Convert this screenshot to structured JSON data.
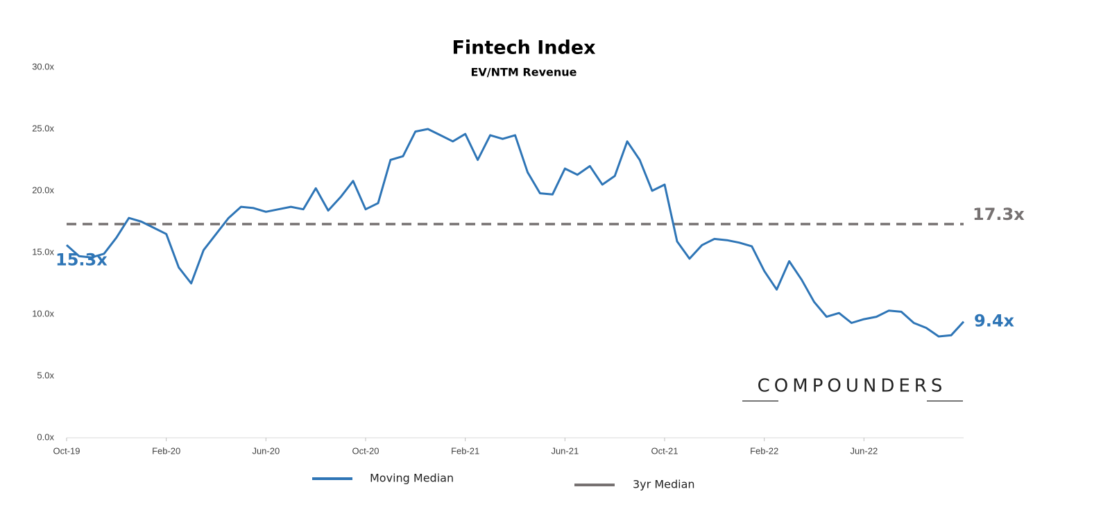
{
  "chart_data": {
    "type": "line",
    "title": "Fintech Index",
    "subtitle": "EV/NTM Revenue",
    "categories": [
      "Oct-19",
      null,
      null,
      null,
      null,
      null,
      null,
      null,
      "Feb-20",
      null,
      null,
      null,
      null,
      null,
      null,
      null,
      "Jun-20",
      null,
      null,
      null,
      null,
      null,
      null,
      null,
      "Oct-20",
      null,
      null,
      null,
      null,
      null,
      null,
      null,
      "Feb-21",
      null,
      null,
      null,
      null,
      null,
      null,
      null,
      "Jun-21",
      null,
      null,
      null,
      null,
      null,
      null,
      null,
      "Oct-21",
      null,
      null,
      null,
      null,
      null,
      null,
      null,
      "Feb-22",
      null,
      null,
      null,
      null,
      null,
      null,
      null,
      "Jun-22",
      null,
      null,
      null,
      null,
      null,
      null,
      null,
      null
    ],
    "series": [
      {
        "name": "Moving Median",
        "color": "#2e75b6",
        "values": [
          15.6,
          14.7,
          14.6,
          14.9,
          16.2,
          17.8,
          17.5,
          17.0,
          16.5,
          13.8,
          12.5,
          15.2,
          16.5,
          17.8,
          18.7,
          18.6,
          18.3,
          18.5,
          18.7,
          18.5,
          20.2,
          18.4,
          19.5,
          20.8,
          18.5,
          19.0,
          22.5,
          22.8,
          24.8,
          25.0,
          24.5,
          24.0,
          24.6,
          22.5,
          24.5,
          24.2,
          24.5,
          21.5,
          19.8,
          19.7,
          21.8,
          21.3,
          22.0,
          20.5,
          21.2,
          24.0,
          22.5,
          20.0,
          20.5,
          15.9,
          14.5,
          15.6,
          16.1,
          16.0,
          15.8,
          15.5,
          13.5,
          12.0,
          14.3,
          12.8,
          11.0,
          9.8,
          10.1,
          9.3,
          9.6,
          9.8,
          10.3,
          10.2,
          9.3,
          8.9,
          8.2,
          8.3,
          9.4
        ]
      }
    ],
    "reference_line": {
      "name": "3yr Median",
      "value": 17.3,
      "label": "17.3x",
      "color": "#767171"
    },
    "annotations": [
      {
        "text": "15.3x",
        "color": "#2e75b6"
      },
      {
        "text": "9.4x",
        "color": "#2e75b6"
      }
    ],
    "watermark": "COMPOUNDERS",
    "ylim": [
      0,
      30
    ],
    "yticks": [
      {
        "value": 0,
        "label": "0.0x"
      },
      {
        "value": 5,
        "label": "5.0x"
      },
      {
        "value": 10,
        "label": "10.0x"
      },
      {
        "value": 15,
        "label": "15.0x"
      },
      {
        "value": 20,
        "label": "20.0x"
      },
      {
        "value": 25,
        "label": "25.0x"
      },
      {
        "value": 30,
        "label": "30.0x"
      }
    ],
    "grid": false
  }
}
